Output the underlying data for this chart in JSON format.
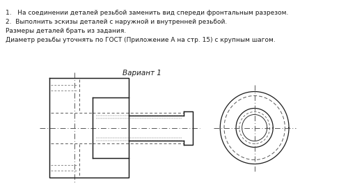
{
  "bg_color": "#ffffff",
  "text_color": "#1a1a1a",
  "line_color": "#1a1a1a",
  "dash_color": "#555555",
  "title_text": "Вариант 1",
  "lines": [
    "1.   На соединении деталей резьбой заменить вид спереди фронтальным разрезом.",
    "2.  Выполнить эскизы деталей с наружной и внутренней резьбой.",
    "Размеры деталей брать из задания.",
    "Диаметр резьбы уточнять по ГОСТ (Приложение А на стр. 15) с крупным шагом."
  ],
  "fig_width": 5.0,
  "fig_height": 2.7,
  "dpi": 100
}
